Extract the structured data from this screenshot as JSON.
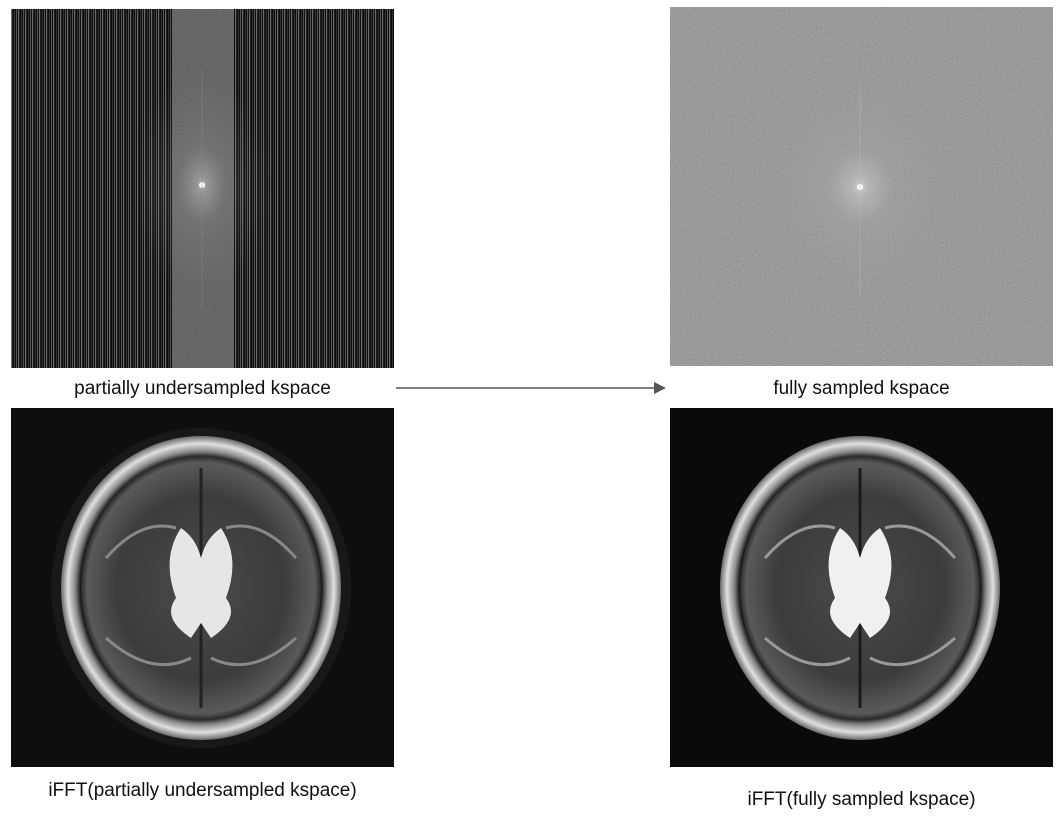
{
  "panels": {
    "undersampled_kspace": {
      "caption": "partially undersampled kspace"
    },
    "full_kspace": {
      "caption": "fully sampled kspace"
    },
    "undersampled_recon": {
      "caption": "iFFT(partially undersampled kspace)"
    },
    "full_recon": {
      "caption": "iFFT(fully sampled kspace)"
    }
  },
  "colors": {
    "arrow": "#555555",
    "background": "#ffffff"
  }
}
